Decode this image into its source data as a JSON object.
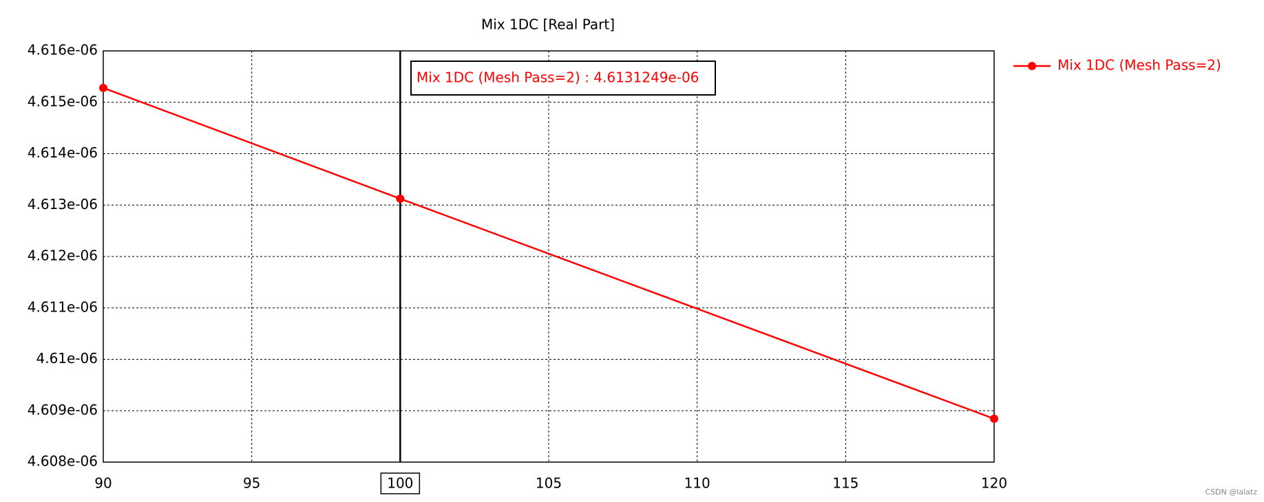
{
  "chart_data": {
    "type": "line",
    "title": "Mix 1DC [Real Part]",
    "x": [
      90,
      100,
      120
    ],
    "series": [
      {
        "name": "Mix 1DC (Mesh Pass=2)",
        "color": "#ff0000",
        "values": [
          4.61528e-06,
          4.6131249e-06,
          4.608844e-06
        ]
      }
    ],
    "xlim": [
      90,
      120
    ],
    "xticks": [
      90,
      95,
      100,
      105,
      110,
      115,
      120
    ],
    "ylim": [
      4.608e-06,
      4.616e-06
    ],
    "yticks": [
      {
        "value": 4.608e-06,
        "label": "4.608e-06"
      },
      {
        "value": 4.609e-06,
        "label": "4.609e-06"
      },
      {
        "value": 4.61e-06,
        "label": "4.61e-06"
      },
      {
        "value": 4.611e-06,
        "label": "4.611e-06"
      },
      {
        "value": 4.612e-06,
        "label": "4.612e-06"
      },
      {
        "value": 4.613e-06,
        "label": "4.613e-06"
      },
      {
        "value": 4.614e-06,
        "label": "4.614e-06"
      },
      {
        "value": 4.615e-06,
        "label": "4.615e-06"
      },
      {
        "value": 4.616e-06,
        "label": "4.616e-06"
      }
    ],
    "grid": true,
    "legend": "right",
    "cursor_x": 100,
    "annotation": "Mix 1DC (Mesh Pass=2) : 4.6131249e-06",
    "watermark": "CSDN @lalatz"
  }
}
